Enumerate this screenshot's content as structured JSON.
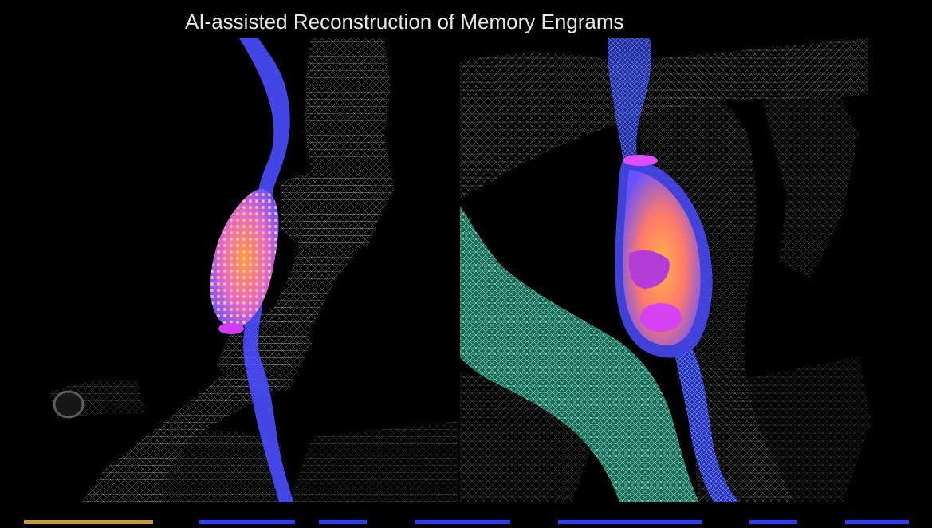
{
  "slide": {
    "title": "AI-assisted Reconstruction of Memory Engrams"
  },
  "colors": {
    "background": "#000000",
    "title_text": "#e8e8e8",
    "mesh_gray": "#8c8c8c",
    "axon_blue": "#4a4cff",
    "bouton_orange": "#ff9a3c",
    "synapse_magenta": "#d23cff",
    "dendrite_teal": "#3fb79a",
    "bottom_strip_yellow": "#c99a2e",
    "bottom_strip_blue": "#2a3dff"
  },
  "panels": {
    "left": {
      "content": "axon-bouton-3d-reconstruction"
    },
    "right": {
      "content": "synapse-3d-reconstruction"
    }
  }
}
